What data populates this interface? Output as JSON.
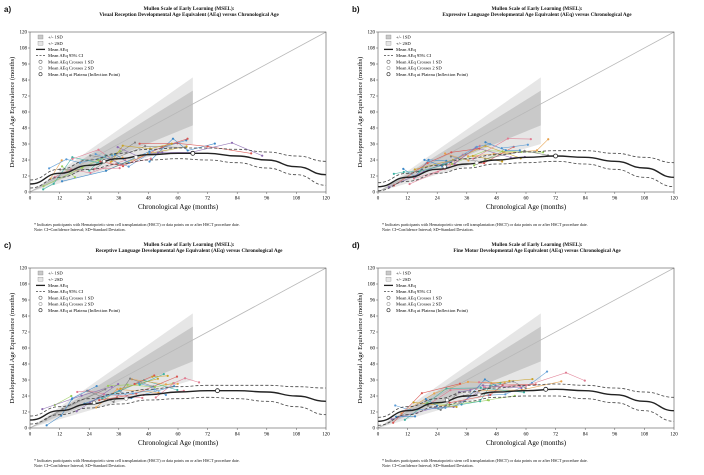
{
  "chart_data": [
    {
      "type": "line",
      "panel_label": "a)",
      "title": "Mullen Scale of Early Learning (MSEL):",
      "subtitle": "Visual Reception Developmental Age Equivalent (AEq) versus Chronological Age",
      "xlabel": "Chronological Age (months)",
      "ylabel": "Developmental Age Equivalence (months)",
      "xlim": [
        0,
        120
      ],
      "ylim": [
        0,
        120
      ],
      "xticks": [
        "0",
        "12",
        "24",
        "36",
        "48",
        "60",
        "72",
        "84",
        "96",
        "108",
        "120"
      ],
      "yticks": [
        "0",
        "12",
        "24",
        "36",
        "48",
        "60",
        "72",
        "84",
        "96",
        "108",
        "120"
      ],
      "legend_position": "top-left",
      "legend": [
        "+/- 1SD",
        "+/- 2SD",
        "Mean AEq",
        "Mean AEq 95% CI",
        "Mean AEq Crosses 1 SD",
        "Mean AEq Crosses 2 SD",
        "Mean AEq at Plateau (Inflection Point)"
      ],
      "x": [
        0,
        12,
        24,
        36,
        48,
        60,
        72,
        84,
        96,
        108,
        120
      ],
      "series": [
        {
          "name": "Mean AEq",
          "values": [
            6,
            14,
            20,
            25,
            28,
            29,
            29,
            27,
            24,
            19,
            13
          ]
        },
        {
          "name": "Mean AEq 95% CI",
          "values": [
            9,
            17,
            24,
            29,
            32,
            33,
            33,
            32,
            30,
            27,
            23
          ]
        },
        {
          "name": "Mean AEq 95% CI",
          "values": [
            3,
            11,
            17,
            21,
            24,
            25,
            24,
            22,
            18,
            13,
            5
          ]
        }
      ],
      "markers": {
        "Mean AEq Crosses 1 SD": [
          [
            30,
            23
          ]
        ],
        "Mean AEq Crosses 2 SD": [
          [
            43,
            26
          ]
        ],
        "Mean AEq at Plateau (Inflection Point)": [
          [
            66,
            29
          ]
        ]
      },
      "footnote": "* Indicates participants with Hematopoietic stem cell transplantation (HSCT) or data points on or after HSCT procedure date.",
      "note": "Note: CI=Confidence Interval; SD=Standard Deviation."
    },
    {
      "type": "line",
      "panel_label": "b)",
      "title": "Mullen Scale of Early Learning (MSEL):",
      "subtitle": "Expressive Language Developmental Age Equivalent (AEq) versus Chronological Age",
      "xlabel": "Chronological Age (months)",
      "ylabel": "Developmental Age Equivalence (months)",
      "xlim": [
        0,
        120
      ],
      "ylim": [
        0,
        120
      ],
      "xticks": [
        "0",
        "12",
        "24",
        "36",
        "48",
        "60",
        "72",
        "84",
        "96",
        "108",
        "120"
      ],
      "yticks": [
        "0",
        "12",
        "24",
        "36",
        "48",
        "60",
        "72",
        "84",
        "96",
        "108",
        "120"
      ],
      "legend_position": "top-left",
      "legend": [
        "+/- 1SD",
        "+/- 2SD",
        "Mean AEq",
        "Mean AEq 95% CI",
        "Mean AEq Crosses 1 SD",
        "Mean AEq Crosses 2 SD",
        "Mean AEq at Plateau (Inflection Point)"
      ],
      "x": [
        0,
        12,
        24,
        36,
        48,
        60,
        72,
        84,
        96,
        108,
        120
      ],
      "series": [
        {
          "name": "Mean AEq",
          "values": [
            4,
            11,
            17,
            21,
            24,
            26,
            27,
            26,
            23,
            18,
            11
          ]
        },
        {
          "name": "Mean AEq 95% CI",
          "values": [
            7,
            14,
            20,
            25,
            28,
            30,
            31,
            31,
            29,
            26,
            22
          ]
        },
        {
          "name": "Mean AEq 95% CI",
          "values": [
            1,
            8,
            14,
            18,
            21,
            22,
            23,
            21,
            17,
            11,
            4
          ]
        }
      ],
      "markers": {
        "Mean AEq Crosses 1 SD": [
          [
            27,
            19
          ]
        ],
        "Mean AEq Crosses 2 SD": [
          [
            40,
            22
          ]
        ],
        "Mean AEq at Plateau (Inflection Point)": [
          [
            72,
            27
          ]
        ]
      },
      "footnote": "* Indicates participants with Hematopoietic stem cell transplantation (HSCT) or data points on or after HSCT procedure date.",
      "note": "Note: CI=Confidence Interval; SD=Standard Deviation."
    },
    {
      "type": "line",
      "panel_label": "c)",
      "title": "Mullen Scale of Early Learning (MSEL):",
      "subtitle": "Receptive Language Developmental Age Equivalent (AEq) versus Chronological Age",
      "xlabel": "Chronological Age (months)",
      "ylabel": "Developmental Age Equivalence (months)",
      "xlim": [
        0,
        120
      ],
      "ylim": [
        0,
        120
      ],
      "xticks": [
        "0",
        "12",
        "24",
        "36",
        "48",
        "60",
        "72",
        "84",
        "96",
        "108",
        "120"
      ],
      "yticks": [
        "0",
        "12",
        "24",
        "36",
        "48",
        "60",
        "72",
        "84",
        "96",
        "108",
        "120"
      ],
      "legend_position": "top-left",
      "legend": [
        "+/- 1SD",
        "+/- 2SD",
        "Mean AEq",
        "Mean AEq 95% CI",
        "Mean AEq Crosses 1 SD",
        "Mean AEq Crosses 2 SD",
        "Mean AEq at Plateau (Inflection Point)"
      ],
      "x": [
        0,
        12,
        24,
        36,
        48,
        60,
        72,
        84,
        96,
        108,
        120
      ],
      "series": [
        {
          "name": "Mean AEq",
          "values": [
            6,
            13,
            18,
            22,
            25,
            27,
            28,
            28,
            27,
            24,
            20
          ]
        },
        {
          "name": "Mean AEq 95% CI",
          "values": [
            9,
            16,
            22,
            26,
            29,
            31,
            32,
            32,
            32,
            31,
            30
          ]
        },
        {
          "name": "Mean AEq 95% CI",
          "values": [
            3,
            10,
            15,
            18,
            21,
            22,
            23,
            22,
            20,
            16,
            10
          ]
        }
      ],
      "markers": {
        "Mean AEq Crosses 1 SD": [
          [
            26,
            19
          ]
        ],
        "Mean AEq Crosses 2 SD": [
          [
            39,
            22
          ]
        ],
        "Mean AEq at Plateau (Inflection Point)": [
          [
            76,
            28
          ]
        ]
      },
      "footnote": "* Indicates participants with Hematopoietic stem cell transplantation (HSCT) or data points on or after HSCT procedure date.",
      "note": "Note: CI=Confidence Interval; SD=Standard Deviation."
    },
    {
      "type": "line",
      "panel_label": "d)",
      "title": "Mullen Scale of Early Learning (MSEL):",
      "subtitle": "Fine Motor Developmental Age Equivalent (AEq) versus Chronological Age",
      "xlabel": "Chronological Age (months)",
      "ylabel": "Developmental Age Equivalence (months)",
      "xlim": [
        0,
        120
      ],
      "ylim": [
        0,
        120
      ],
      "xticks": [
        "0",
        "12",
        "24",
        "36",
        "48",
        "60",
        "72",
        "84",
        "96",
        "108",
        "120"
      ],
      "yticks": [
        "0",
        "12",
        "24",
        "36",
        "48",
        "60",
        "72",
        "84",
        "96",
        "108",
        "120"
      ],
      "legend_position": "top-left",
      "legend": [
        "+/- 1SD",
        "+/- 2SD",
        "Mean AEq",
        "Mean AEq 95% CI",
        "Mean AEq Crosses 1 SD",
        "Mean AEq Crosses 2 SD",
        "Mean AEq at Plateau (Inflection Point)"
      ],
      "x": [
        0,
        12,
        24,
        36,
        48,
        60,
        72,
        84,
        96,
        108,
        120
      ],
      "series": [
        {
          "name": "Mean AEq",
          "values": [
            5,
            13,
            19,
            24,
            27,
            28,
            29,
            28,
            25,
            20,
            13
          ]
        },
        {
          "name": "Mean AEq 95% CI",
          "values": [
            8,
            16,
            22,
            27,
            30,
            32,
            33,
            32,
            30,
            27,
            23
          ]
        },
        {
          "name": "Mean AEq 95% CI",
          "values": [
            2,
            10,
            16,
            20,
            23,
            24,
            24,
            22,
            19,
            13,
            5
          ]
        }
      ],
      "markers": {
        "Mean AEq Crosses 1 SD": [
          [
            28,
            21
          ]
        ],
        "Mean AEq Crosses 2 SD": [
          [
            41,
            25
          ]
        ],
        "Mean AEq at Plateau (Inflection Point)": [
          [
            68,
            29
          ]
        ]
      },
      "footnote": "* Indicates participants with Hematopoietic stem cell transplantation (HSCT) or data points on or after HSCT procedure date.",
      "note": "Note: CI=Confidence Interval; SD=Standard Deviation."
    }
  ],
  "colors": {
    "band_1sd": "#c9c9c9",
    "band_2sd": "#e6e6e6",
    "identity_line": "#b8b8b8",
    "mean_line": "#222222",
    "ci_line": "#444444",
    "individual_palette": [
      "#3a87c8",
      "#e07b91",
      "#9acd5a",
      "#e8a24c",
      "#8c6bb1",
      "#3ab0a0",
      "#d9534f",
      "#7f7f7f",
      "#c9a227",
      "#5b9bd5"
    ]
  }
}
